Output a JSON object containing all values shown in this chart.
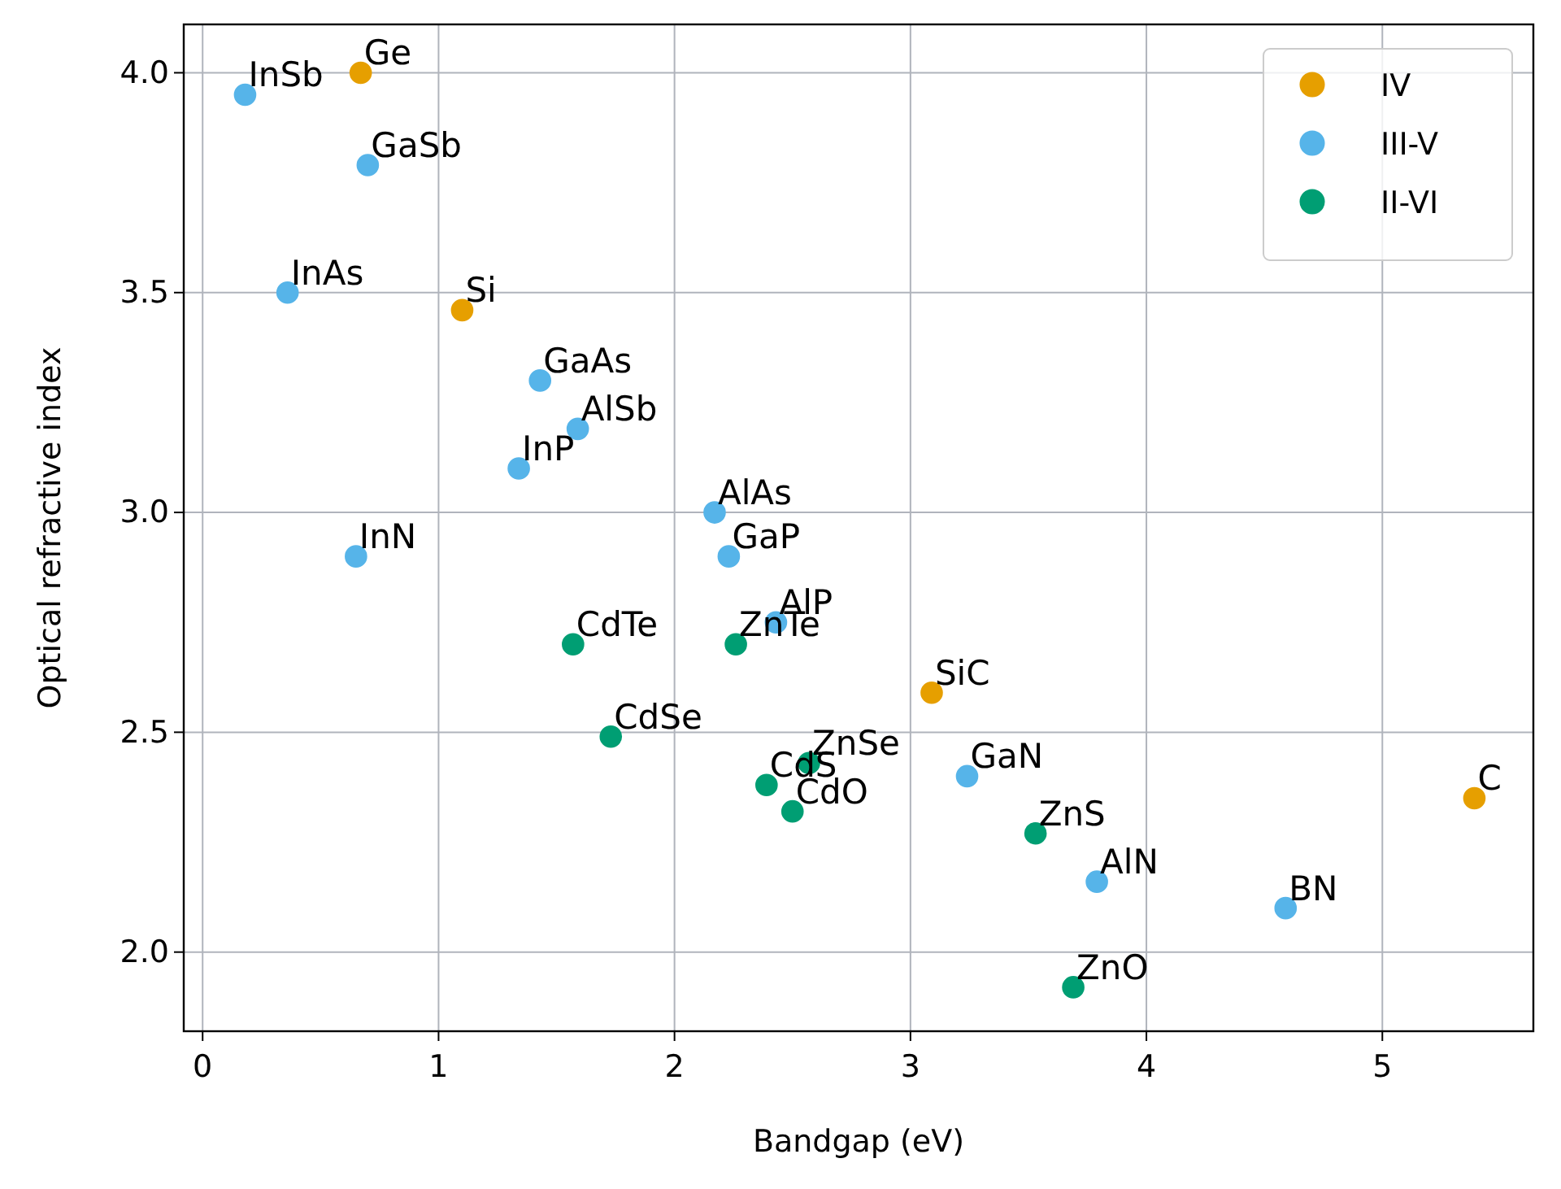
{
  "chart_data": {
    "type": "scatter",
    "xlabel": "Bandgap (eV)",
    "ylabel": "Optical refractive index",
    "xlim": [
      -0.08,
      5.64
    ],
    "ylim": [
      1.82,
      4.11
    ],
    "xticks": [
      0,
      1,
      2,
      3,
      4,
      5
    ],
    "yticks": [
      {
        "value": 2,
        "label": "2.0"
      },
      {
        "value": 2.5,
        "label": "2.5"
      },
      {
        "value": 3,
        "label": "3.0"
      },
      {
        "value": 3.5,
        "label": "3.5"
      },
      {
        "value": 4,
        "label": "4.0"
      }
    ],
    "grid": true,
    "legend": "top right",
    "marker": "circle",
    "series": [
      {
        "name": "IV",
        "color": "#e69f00",
        "x": [
          0.67,
          1.1,
          3.09,
          5.39
        ],
        "values": [
          4.0,
          3.46,
          2.59,
          2.35
        ]
      },
      {
        "name": "III-V",
        "color": "#56b4e9",
        "x": [
          0.18,
          0.7,
          0.36,
          1.43,
          1.59,
          1.34,
          2.17,
          2.23,
          0.65,
          2.43,
          3.24,
          3.79,
          4.59
        ],
        "values": [
          3.95,
          3.79,
          3.5,
          3.3,
          3.19,
          3.1,
          3.0,
          2.9,
          2.9,
          2.75,
          2.4,
          2.16,
          2.1
        ]
      },
      {
        "name": "II-VI",
        "color": "#009e73",
        "x": [
          1.57,
          2.26,
          1.73,
          2.57,
          2.39,
          2.5,
          3.53,
          3.69
        ],
        "values": [
          2.7,
          2.7,
          2.49,
          2.43,
          2.38,
          2.32,
          2.27,
          1.92
        ]
      }
    ],
    "annotations": [
      {
        "text": "Ge",
        "x": 0.67,
        "y": 4.0
      },
      {
        "text": "Si",
        "x": 1.1,
        "y": 3.46
      },
      {
        "text": "SiC",
        "x": 3.09,
        "y": 2.59
      },
      {
        "text": "C",
        "x": 5.39,
        "y": 2.35
      },
      {
        "text": "InSb",
        "x": 0.18,
        "y": 3.95
      },
      {
        "text": "GaSb",
        "x": 0.7,
        "y": 3.79
      },
      {
        "text": "InAs",
        "x": 0.36,
        "y": 3.5
      },
      {
        "text": "GaAs",
        "x": 1.43,
        "y": 3.3
      },
      {
        "text": "AlSb",
        "x": 1.59,
        "y": 3.19
      },
      {
        "text": "InP",
        "x": 1.34,
        "y": 3.1
      },
      {
        "text": "AlAs",
        "x": 2.17,
        "y": 3.0
      },
      {
        "text": "GaP",
        "x": 2.23,
        "y": 2.9
      },
      {
        "text": "InN",
        "x": 0.65,
        "y": 2.9
      },
      {
        "text": "AlP",
        "x": 2.43,
        "y": 2.75
      },
      {
        "text": "GaN",
        "x": 3.24,
        "y": 2.4
      },
      {
        "text": "AlN",
        "x": 3.79,
        "y": 2.16
      },
      {
        "text": "BN",
        "x": 4.59,
        "y": 2.1
      },
      {
        "text": "CdTe",
        "x": 1.57,
        "y": 2.7
      },
      {
        "text": "ZnTe",
        "x": 2.26,
        "y": 2.7
      },
      {
        "text": "CdSe",
        "x": 1.73,
        "y": 2.49
      },
      {
        "text": "ZnSe",
        "x": 2.57,
        "y": 2.43
      },
      {
        "text": "CdS",
        "x": 2.39,
        "y": 2.38
      },
      {
        "text": "CdO",
        "x": 2.5,
        "y": 2.32
      },
      {
        "text": "ZnS",
        "x": 3.53,
        "y": 2.27
      },
      {
        "text": "ZnO",
        "x": 3.69,
        "y": 1.92
      }
    ]
  }
}
